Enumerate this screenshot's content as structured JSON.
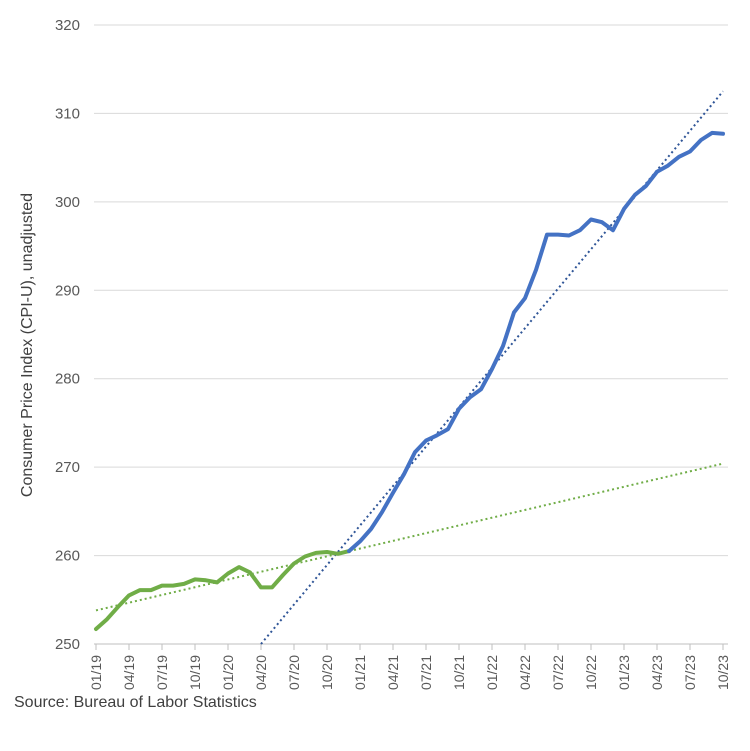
{
  "chart_data": {
    "type": "line",
    "title": "",
    "xlabel": "",
    "ylabel": "Consumer Price Index (CPI-U), unadjusted",
    "ylim": [
      250,
      320
    ],
    "yticks": [
      250,
      260,
      270,
      280,
      290,
      300,
      310,
      320
    ],
    "grid": "horizontal",
    "legend": "none",
    "x_tick_labels": [
      "01/19",
      "04/19",
      "07/19",
      "10/19",
      "01/20",
      "04/20",
      "07/20",
      "10/20",
      "01/21",
      "04/21",
      "07/21",
      "10/21",
      "01/22",
      "04/22",
      "07/22",
      "10/22",
      "01/23",
      "04/23",
      "07/23",
      "10/23"
    ],
    "series": [
      {
        "color": "#70AD47",
        "style": "solid",
        "x": [
          "01/19",
          "02/19",
          "03/19",
          "04/19",
          "05/19",
          "06/19",
          "07/19",
          "08/19",
          "09/19",
          "10/19",
          "11/19",
          "12/19",
          "01/20",
          "02/20",
          "03/20",
          "04/20",
          "05/20",
          "06/20",
          "07/20",
          "08/20",
          "09/20",
          "10/20",
          "11/20",
          "12/20"
        ],
        "values": [
          251.7,
          252.8,
          254.2,
          255.5,
          256.1,
          256.1,
          256.6,
          256.6,
          256.8,
          257.3,
          257.2,
          256.97,
          257.97,
          258.7,
          258.1,
          256.4,
          256.4,
          257.8,
          259.1,
          259.9,
          260.3,
          260.4,
          260.2,
          260.5
        ]
      },
      {
        "color": "#4472C4",
        "style": "solid",
        "x": [
          "12/20",
          "01/21",
          "02/21",
          "03/21",
          "04/21",
          "05/21",
          "06/21",
          "07/21",
          "08/21",
          "09/21",
          "10/21",
          "11/21",
          "12/21",
          "01/22",
          "02/22",
          "03/22",
          "04/22",
          "05/22",
          "06/22",
          "07/22",
          "08/22",
          "09/22",
          "10/22",
          "11/22",
          "12/22",
          "01/23",
          "02/23",
          "03/23",
          "04/23",
          "05/23",
          "06/23",
          "07/23",
          "08/23",
          "09/23",
          "10/23"
        ],
        "values": [
          260.5,
          261.6,
          263.0,
          264.9,
          267.1,
          269.2,
          271.7,
          273.0,
          273.6,
          274.3,
          276.6,
          277.9,
          278.8,
          281.1,
          283.7,
          287.5,
          289.1,
          292.3,
          296.3,
          296.3,
          296.2,
          296.8,
          298.0,
          297.7,
          296.8,
          299.2,
          300.8,
          301.8,
          303.4,
          304.1,
          305.1,
          305.7,
          307.0,
          307.8,
          307.7
        ]
      },
      {
        "color": "#70AD47",
        "style": "dotted",
        "kind": "trendline",
        "x": [
          "01/19",
          "10/23"
        ],
        "values": [
          253.8,
          270.4
        ]
      },
      {
        "color": "#2F5597",
        "style": "dotted",
        "kind": "trendline",
        "x": [
          "04/20",
          "10/23"
        ],
        "values": [
          250.0,
          312.5
        ]
      }
    ]
  },
  "footer": {
    "source": "Source: Bureau of Labor Statistics"
  }
}
